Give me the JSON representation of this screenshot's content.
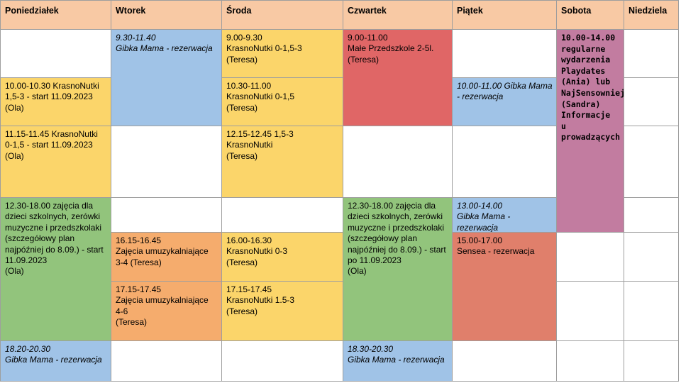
{
  "headers": {
    "mon": "Poniedziałek",
    "tue": "Wtorek",
    "wed": "Środa",
    "thu": "Czwartek",
    "fri": "Piątek",
    "sat": "Sobota",
    "sun": "Niedziela"
  },
  "events": {
    "tue_gibka": "9.30-11.40\nGibka Mama - rezerwacja",
    "wed_krasno_1": "9.00-9.30\nKrasnoNutki 0-1,5-3\n(Teresa)",
    "thu_przedszkole": "9.00-11.00\nMałe Przedszkole 2-5l.\n(Teresa)",
    "sat_playdates": "10.00-14.00\nregularne\nwydarzenia\nPlaydates\n(Ania) lub\nNajSensowniej\n(Sandra)\nInformacje u\nprowadzących",
    "mon_krasno_1": "10.00-10.30 KrasnoNutki\n1,5-3 - start 11.09.2023\n(Ola)",
    "wed_krasno_2": "10.30-11.00\nKrasnoNutki 0-1,5\n(Teresa)",
    "fri_gibka_1": "10.00-11.00 Gibka Mama\n- rezerwacja",
    "mon_krasno_2": "11.15-11.45 KrasnoNutki\n0-1,5 - start 11.09.2023\n(Ola)",
    "wed_krasno_3": "12.15-12.45 1,5-3\nKrasnoNutki\n(Teresa)",
    "mon_zajecia": "12.30-18.00 zajęcia dla\ndzieci szkolnych, zerówki\nmuzyczne i przedszkolaki\n(szczegółowy plan\nnajpóźniej do 8.09.) - start\n11.09.2023\n(Ola)",
    "thu_zajecia": "12.30-18.00 zajęcia dla\ndzieci szkolnych, zerówki\nmuzyczne i przedszkolaki\n(szczegółowy plan\nnajpóźniej do 8.09.) - start\npo 11.09.2023\n(Ola)",
    "fri_gibka_2": "13.00-14.00\nGibka Mama - rezerwacja",
    "tue_umuz_1": "16.15-16.45\nZajęcia umuzykalniające\n3-4 (Teresa)",
    "wed_krasno_4": "16.00-16.30\nKrasnoNutki 0-3\n(Teresa)",
    "fri_sensea": "15.00-17.00\nSensea - rezerwacja",
    "tue_umuz_2": "17.15-17.45\nZajęcia umuzykalniające\n4-6\n(Teresa)",
    "wed_krasno_5": "17.15-17.45\nKrasnoNutki 1.5-3\n(Teresa)",
    "mon_gibka": "18.20-20.30\nGibka Mama - rezerwacja",
    "thu_gibka": "18.30-20.30\nGibka Mama - rezerwacja"
  },
  "colors": {
    "header": "#f8c9a4",
    "yellow": "#fbd56a",
    "blue": "#a0c3e7",
    "red": "#e06666",
    "green": "#92c47c",
    "orange": "#f5ac6d",
    "salmon": "#e07f6b",
    "pink": "#c27ca0"
  }
}
